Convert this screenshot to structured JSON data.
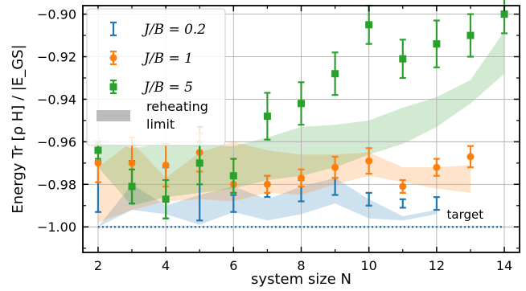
{
  "chart_data": {
    "type": "scatter",
    "xlabel": "system size N",
    "ylabel": "Energy Tr [ρ H] / |E_GS|",
    "xlim": [
      1.55,
      14.45
    ],
    "ylim": [
      -1.012,
      -0.896
    ],
    "xticks": [
      2,
      4,
      6,
      8,
      10,
      12,
      14
    ],
    "xtick_labels": [
      "2",
      "4",
      "6",
      "8",
      "10",
      "12",
      "14"
    ],
    "yticks": [
      -1.0,
      -0.98,
      -0.96,
      -0.94,
      -0.92,
      -0.9
    ],
    "ytick_labels": [
      "−1.00",
      "−0.98",
      "−0.96",
      "−0.94",
      "−0.92",
      "−0.90"
    ],
    "grid": true,
    "legend_position": "top-left",
    "series": [
      {
        "name": "J/B = 0.2",
        "color": "#1f77b4",
        "marker": "none",
        "x": [
          2,
          3,
          4,
          5,
          6,
          7,
          8,
          9,
          10,
          11,
          12
        ],
        "y": [
          -0.981,
          -0.979,
          -0.984,
          -0.975,
          -0.989,
          -0.981,
          -0.983,
          -0.981,
          -0.987,
          -0.989,
          -0.989
        ],
        "err": [
          0.012,
          0.01,
          0.012,
          0.022,
          0.004,
          0.005,
          0.005,
          0.004,
          0.003,
          0.002,
          0.003
        ]
      },
      {
        "name": "J/B = 1",
        "color": "#ff7f0e",
        "marker": "circle",
        "x": [
          2,
          3,
          4,
          5,
          6,
          7,
          8,
          9,
          10,
          11,
          12,
          13
        ],
        "y": [
          -0.97,
          -0.97,
          -0.971,
          -0.965,
          -0.98,
          -0.98,
          -0.977,
          -0.972,
          -0.969,
          -0.981,
          -0.972,
          -0.967
        ],
        "err": [
          0.009,
          0.012,
          0.01,
          0.009,
          0.004,
          0.004,
          0.004,
          0.005,
          0.006,
          0.003,
          0.004,
          0.005
        ]
      },
      {
        "name": "J/B = 5",
        "color": "#2ca02c",
        "marker": "square",
        "x": [
          2,
          3,
          4,
          5,
          6,
          7,
          8,
          9,
          10,
          11,
          12,
          13,
          14
        ],
        "y": [
          -0.964,
          -0.981,
          -0.987,
          -0.97,
          -0.976,
          -0.948,
          -0.942,
          -0.928,
          -0.905,
          -0.921,
          -0.914,
          -0.91,
          -0.9
        ],
        "err": [
          0.004,
          0.008,
          0.009,
          0.01,
          0.008,
          0.011,
          0.01,
          0.01,
          0.009,
          0.009,
          0.011,
          0.01,
          0.009
        ]
      }
    ],
    "bands": [
      {
        "series": "J/B = 0.2",
        "color": "#1f77b4",
        "x": [
          2,
          3,
          4,
          5,
          6,
          7,
          8,
          9,
          10,
          11,
          12
        ],
        "lower": [
          -1.0,
          -0.992,
          -0.994,
          -0.999,
          -0.993,
          -0.997,
          -0.994,
          -0.989,
          -0.996,
          -0.997,
          -0.994
        ],
        "upper": [
          -1.0,
          -0.98,
          -0.99,
          -0.985,
          -0.981,
          -0.987,
          -0.981,
          -0.977,
          -0.987,
          -0.995,
          -0.992
        ]
      },
      {
        "series": "J/B = 1",
        "color": "#ff7f0e",
        "x": [
          2,
          3,
          4,
          5,
          6,
          7,
          8,
          9,
          10,
          11,
          12,
          13
        ],
        "lower": [
          -0.998,
          -0.992,
          -0.988,
          -0.987,
          -0.988,
          -0.984,
          -0.985,
          -0.98,
          -0.976,
          -0.979,
          -0.982,
          -0.984
        ],
        "upper": [
          -0.972,
          -0.96,
          -0.977,
          -0.965,
          -0.96,
          -0.964,
          -0.966,
          -0.966,
          -0.965,
          -0.972,
          -0.972,
          -0.971
        ]
      },
      {
        "series": "J/B = 5",
        "color": "#2ca02c",
        "x": [
          2,
          3,
          4,
          5,
          6,
          7,
          8,
          9,
          10,
          11,
          12,
          13,
          14
        ],
        "lower": [
          -0.972,
          -0.99,
          -0.986,
          -0.984,
          -0.982,
          -0.978,
          -0.976,
          -0.972,
          -0.966,
          -0.961,
          -0.953,
          -0.942,
          -0.928
        ],
        "upper": [
          -0.958,
          -0.963,
          -0.961,
          -0.962,
          -0.962,
          -0.958,
          -0.953,
          -0.952,
          -0.95,
          -0.944,
          -0.939,
          -0.931,
          -0.908
        ]
      }
    ],
    "reference_line": {
      "label": "target",
      "y": -1.0,
      "color": "#1f77b4",
      "style": "dotted"
    },
    "legend_extra": {
      "label_line1": "reheating",
      "label_line2": "limit",
      "color": "#bbbbbb"
    }
  }
}
